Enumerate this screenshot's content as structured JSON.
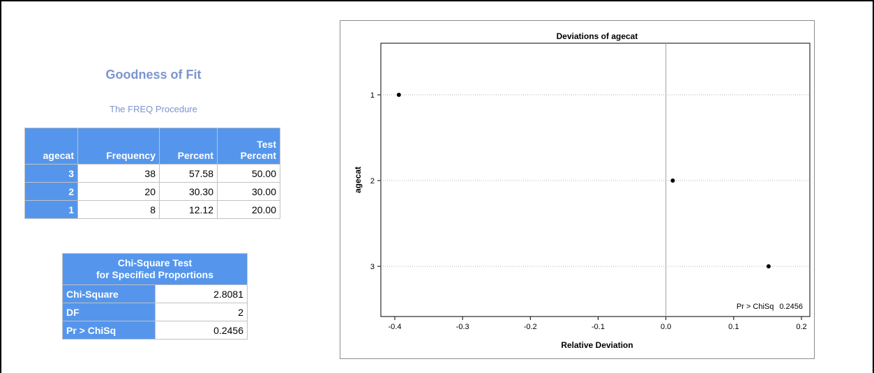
{
  "report": {
    "title": "Goodness of Fit",
    "subtitle": "The FREQ Procedure"
  },
  "freq_table": {
    "headers": {
      "agecat": "agecat",
      "frequency": "Frequency",
      "percent": "Percent",
      "test_percent_line1": "Test",
      "test_percent_line2": "Percent"
    },
    "rows": [
      {
        "agecat": "3",
        "frequency": "38",
        "percent": "57.58",
        "test_percent": "50.00"
      },
      {
        "agecat": "2",
        "frequency": "20",
        "percent": "30.30",
        "test_percent": "30.00"
      },
      {
        "agecat": "1",
        "frequency": "8",
        "percent": "12.12",
        "test_percent": "20.00"
      }
    ]
  },
  "chisq_table": {
    "caption_line1": "Chi-Square Test",
    "caption_line2": "for Specified Proportions",
    "rows": [
      {
        "label": "Chi-Square",
        "value": "2.8081"
      },
      {
        "label": "DF",
        "value": "2"
      },
      {
        "label": "Pr > ChiSq",
        "value": "0.2456"
      }
    ]
  },
  "chart_data": {
    "type": "scatter",
    "title": "Deviations of agecat",
    "xlabel": "Relative Deviation",
    "ylabel": "agecat",
    "categories": [
      "1",
      "2",
      "3"
    ],
    "x_ticks": [
      "-0.4",
      "-0.3",
      "-0.2",
      "-0.1",
      "0.0",
      "0.1",
      "0.2"
    ],
    "xlim": [
      -0.4,
      0.2
    ],
    "reference_line_x": 0,
    "points": [
      {
        "category": "1",
        "x": -0.394
      },
      {
        "category": "2",
        "x": 0.0101
      },
      {
        "category": "3",
        "x": 0.1515
      }
    ],
    "inset_label": "Pr > ChiSq",
    "inset_value": "0.2456",
    "gridlines": "horizontal dotted",
    "marker_color": "#000000",
    "ref_line_color": "#a0a0a0"
  }
}
